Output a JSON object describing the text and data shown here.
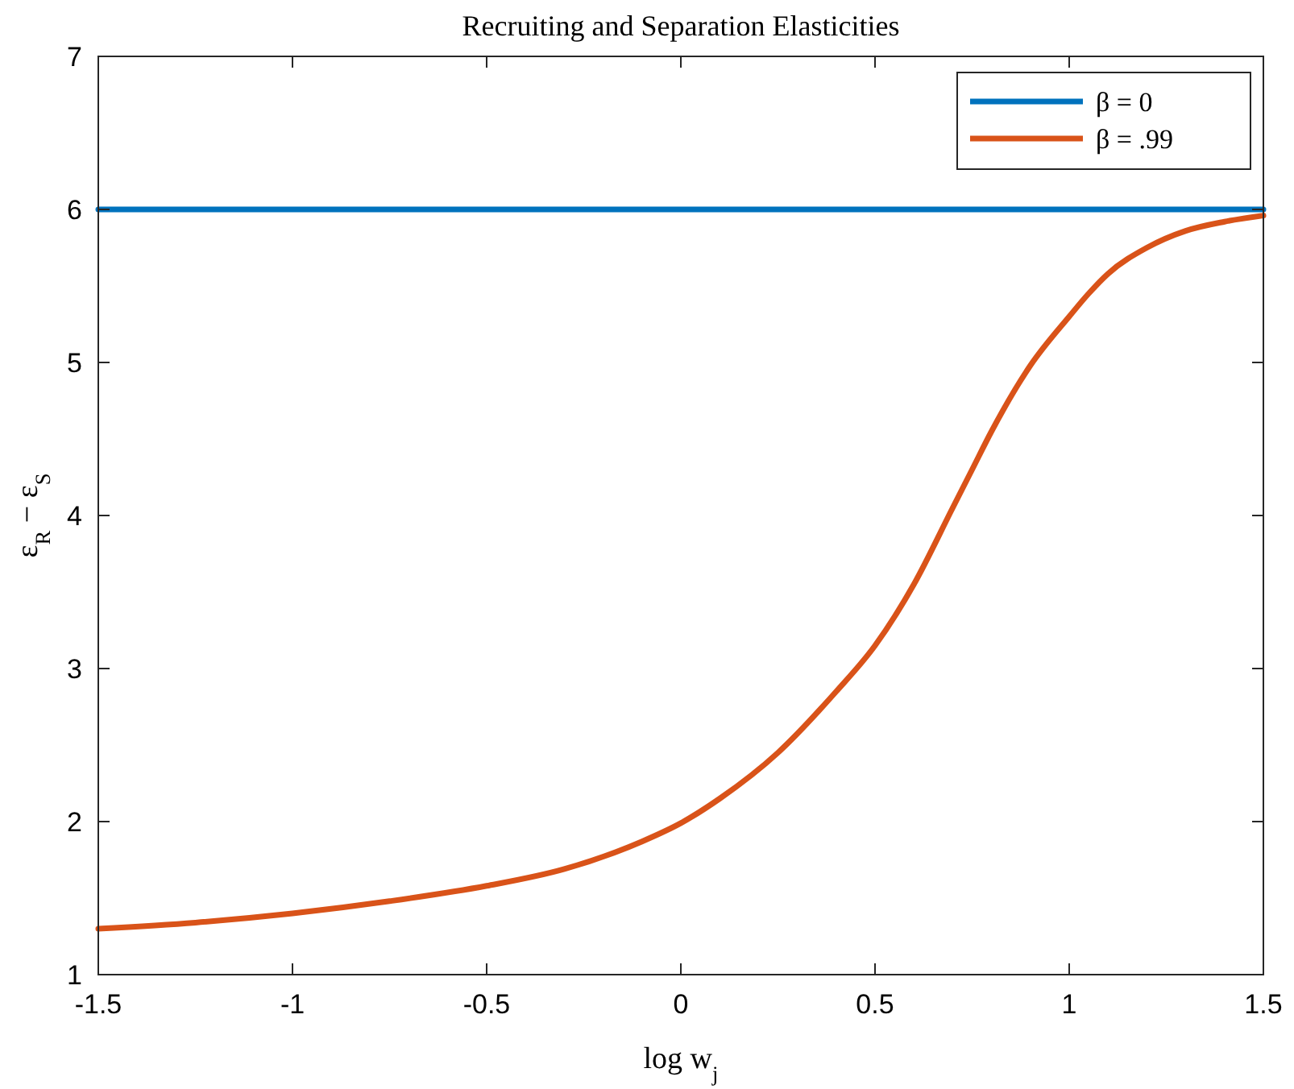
{
  "chart_data": {
    "type": "line",
    "title": "Recruiting and Separation Elasticities",
    "xlabel": "log w$_{j}$",
    "ylabel": "ε$_{R}$ − ε$_{S}$",
    "x": [
      -1.5,
      -1.25,
      -1,
      -0.75,
      -0.5,
      -0.3,
      -0.1,
      0,
      0.1,
      0.25,
      0.4,
      0.5,
      0.6,
      0.7,
      0.75,
      0.8,
      0.9,
      1,
      1.05,
      1.1,
      1.2,
      1.3,
      1.4,
      1.5
    ],
    "series": [
      {
        "name": "β = 0",
        "color": "#0072bd",
        "x": [
          -1.5,
          1.5
        ],
        "values": [
          6,
          6
        ]
      },
      {
        "name": "β = .99",
        "color": "#d95319",
        "values": [
          1.3,
          1.34,
          1.4,
          1.48,
          1.58,
          1.69,
          1.87,
          1.99,
          2.15,
          2.45,
          2.85,
          3.15,
          3.55,
          4.05,
          4.3,
          4.55,
          4.98,
          5.3,
          5.45,
          5.58,
          5.75,
          5.86,
          5.92,
          5.96
        ]
      }
    ],
    "xlim": [
      -1.5,
      1.5
    ],
    "xticks": [
      -1.5,
      -1,
      -0.5,
      0,
      0.5,
      1,
      1.5
    ],
    "ylim": [
      1,
      7
    ],
    "yticks": [
      1,
      2,
      3,
      4,
      5,
      6,
      7
    ],
    "grid": false,
    "legend": "top right",
    "marker": "none",
    "line_style": "solid"
  }
}
